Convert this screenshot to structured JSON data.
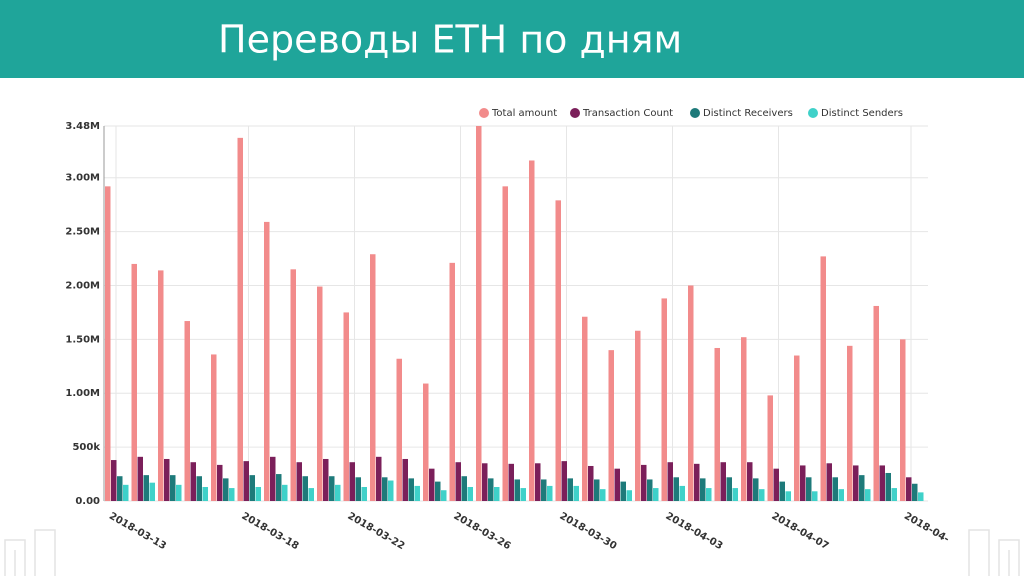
{
  "chart_data": {
    "type": "bar",
    "title": "Переводы ETH по дням",
    "categories": [
      "2018-03-13",
      null,
      null,
      null,
      null,
      "2018-03-18",
      null,
      null,
      null,
      "2018-03-22",
      null,
      null,
      null,
      "2018-03-26",
      null,
      null,
      null,
      "2018-03-30",
      null,
      null,
      null,
      "2018-04-03",
      null,
      null,
      null,
      "2018-04-07",
      null,
      null,
      null,
      null,
      "2018-04-"
    ],
    "series": [
      {
        "name": "Total amount",
        "color": "#f28b8b",
        "values": [
          2920000,
          2200000,
          2140000,
          1670000,
          1360000,
          3370000,
          2590000,
          2150000,
          1990000,
          1750000,
          2290000,
          1320000,
          1090000,
          2210000,
          3480000,
          2920000,
          3160000,
          2790000,
          1710000,
          1400000,
          1580000,
          1880000,
          2000000,
          1420000,
          1520000,
          980000,
          1350000,
          2270000,
          1440000,
          1810000,
          1500000
        ]
      },
      {
        "name": "Transaction Count",
        "color": "#7b1f5a",
        "values": [
          380000,
          410000,
          390000,
          360000,
          335000,
          370000,
          410000,
          360000,
          390000,
          360000,
          410000,
          390000,
          300000,
          360000,
          350000,
          345000,
          350000,
          370000,
          325000,
          300000,
          335000,
          360000,
          345000,
          360000,
          360000,
          300000,
          330000,
          350000,
          330000,
          330000,
          220000
        ]
      },
      {
        "name": "Distinct Receivers",
        "color": "#1e7a7a",
        "values": [
          230000,
          240000,
          240000,
          230000,
          210000,
          240000,
          250000,
          230000,
          230000,
          220000,
          220000,
          210000,
          180000,
          230000,
          210000,
          200000,
          200000,
          210000,
          200000,
          180000,
          200000,
          220000,
          210000,
          220000,
          210000,
          180000,
          220000,
          220000,
          240000,
          260000,
          160000
        ]
      },
      {
        "name": "Distinct Senders",
        "color": "#3fd1c9",
        "values": [
          150000,
          170000,
          150000,
          130000,
          120000,
          130000,
          150000,
          120000,
          150000,
          130000,
          190000,
          140000,
          100000,
          130000,
          130000,
          120000,
          140000,
          140000,
          110000,
          100000,
          120000,
          140000,
          120000,
          120000,
          110000,
          90000,
          90000,
          110000,
          110000,
          120000,
          80000
        ]
      }
    ],
    "ylim": [
      0,
      3480000
    ],
    "yticks": [
      {
        "value": 0,
        "label": "0.00"
      },
      {
        "value": 500000,
        "label": "500k"
      },
      {
        "value": 1000000,
        "label": "1.00M"
      },
      {
        "value": 1500000,
        "label": "1.50M"
      },
      {
        "value": 2000000,
        "label": "2.00M"
      },
      {
        "value": 2500000,
        "label": "2.50M"
      },
      {
        "value": 3000000,
        "label": "3.00M"
      },
      {
        "value": 3480000,
        "label": "3.48M"
      }
    ],
    "grid": true,
    "legend": "top-right"
  }
}
